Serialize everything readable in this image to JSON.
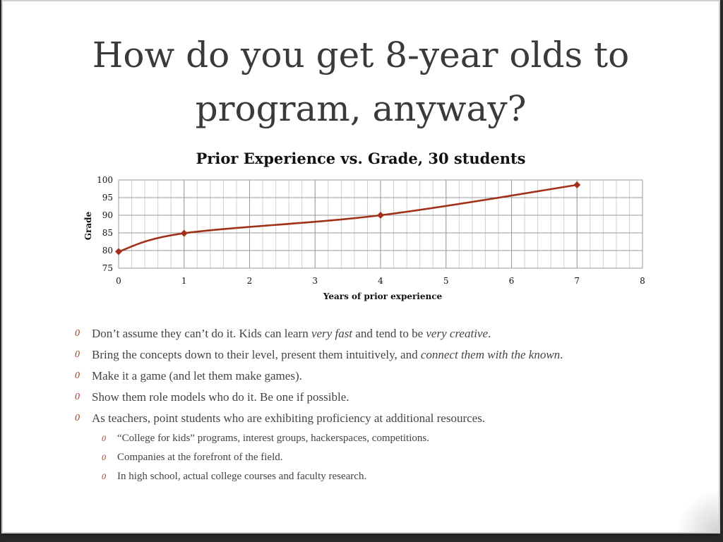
{
  "slide": {
    "title_lines": [
      "How do you get 8-year olds to",
      "program, anyway?"
    ],
    "bullets": [
      {
        "level": 1,
        "parts": [
          {
            "text": "Don’t assume they can’t do it. Kids can learn ",
            "italic": false
          },
          {
            "text": "very fast",
            "italic": true
          },
          {
            "text": " and tend to be ",
            "italic": false
          },
          {
            "text": "very creative",
            "italic": true
          },
          {
            "text": ".",
            "italic": false
          }
        ]
      },
      {
        "level": 1,
        "parts": [
          {
            "text": "Bring the concepts down to their level, present them intuitively, and ",
            "italic": false
          },
          {
            "text": "connect them with the known",
            "italic": true
          },
          {
            "text": ".",
            "italic": false
          }
        ]
      },
      {
        "level": 1,
        "parts": [
          {
            "text": "Make it a game (and let them make games).",
            "italic": false
          }
        ]
      },
      {
        "level": 1,
        "parts": [
          {
            "text": "Show them role models who do it. Be one if possible.",
            "italic": false
          }
        ]
      },
      {
        "level": 1,
        "parts": [
          {
            "text": "As teachers, point students who are exhibiting proficiency at additional resources.",
            "italic": false
          }
        ]
      },
      {
        "level": 2,
        "parts": [
          {
            "text": "“College for kids” programs, interest groups, hackerspaces, competitions.",
            "italic": false
          }
        ]
      },
      {
        "level": 2,
        "parts": [
          {
            "text": "Companies at the forefront of the field.",
            "italic": false
          }
        ]
      },
      {
        "level": 2,
        "parts": [
          {
            "text": "In high school, actual college courses and faculty research.",
            "italic": false
          }
        ]
      }
    ],
    "bullet_glyph": "0",
    "colors": {
      "accent": "#a53a20",
      "line": "#a3311a",
      "text": "#3a3a3a"
    }
  },
  "chart_data": {
    "type": "line",
    "title": "Prior Experience vs. Grade, 30 students",
    "xlabel": "Years of prior experience",
    "ylabel": "Grade",
    "xlim": [
      0,
      8
    ],
    "ylim": [
      75,
      100
    ],
    "x_ticks": [
      "0",
      "1",
      "2",
      "3",
      "4",
      "5",
      "6",
      "7",
      "8"
    ],
    "y_ticks": [
      "75",
      "80",
      "85",
      "90",
      "95",
      "100"
    ],
    "grid": true,
    "legend": "none",
    "series": [
      {
        "x": [
          0,
          1,
          4,
          7
        ],
        "y": [
          79.7,
          84.9,
          90.0,
          98.6
        ],
        "smooth": true,
        "marker": "diamond",
        "color": "#a3311a"
      }
    ]
  }
}
